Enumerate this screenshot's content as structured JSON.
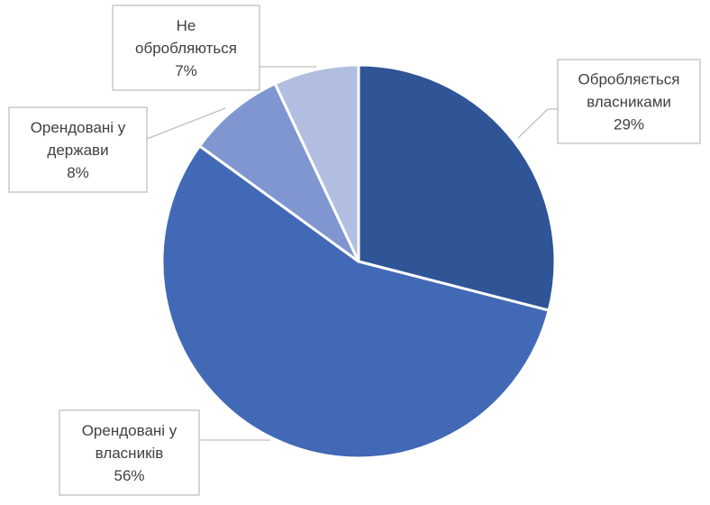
{
  "chart_data": {
    "type": "pie",
    "title": "",
    "start_angle_deg": 0,
    "direction": "clockwise",
    "slices": [
      {
        "label_lines": [
          "Обробляється",
          "власниками"
        ],
        "value": 29,
        "value_label": "29%",
        "color": "#2f5597"
      },
      {
        "label_lines": [
          "Орендовані у",
          "власників"
        ],
        "value": 56,
        "value_label": "56%",
        "color": "#4169b5"
      },
      {
        "label_lines": [
          "Орендовані у",
          "держави"
        ],
        "value": 8,
        "value_label": "8%",
        "color": "#7f96d1"
      },
      {
        "label_lines": [
          "Не",
          "обробляються"
        ],
        "value": 7,
        "value_label": "7%",
        "color": "#b1bedf"
      }
    ],
    "legend": "none",
    "data_labels": "callouts"
  }
}
